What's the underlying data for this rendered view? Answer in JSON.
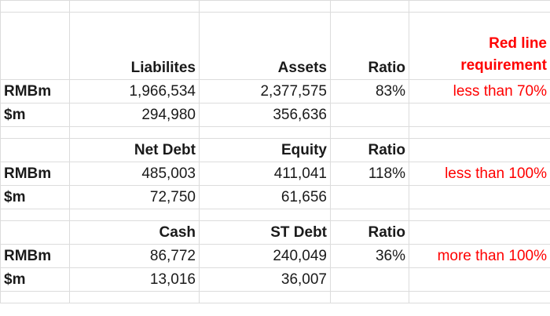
{
  "sections": [
    {
      "headers": {
        "col1": "Liabilites",
        "col2": "Assets",
        "ratio": "Ratio",
        "requirement_line1": "Red line",
        "requirement_line2": "requirement"
      },
      "rows": [
        {
          "label": "RMBm",
          "col1": "1,966,534",
          "col2": "2,377,575",
          "ratio": "83%",
          "requirement": "less than 70%"
        },
        {
          "label": "$m",
          "col1": "294,980",
          "col2": "356,636",
          "ratio": "",
          "requirement": ""
        }
      ]
    },
    {
      "headers": {
        "col1": "Net Debt",
        "col2": "Equity",
        "ratio": "Ratio"
      },
      "rows": [
        {
          "label": "RMBm",
          "col1": "485,003",
          "col2": "411,041",
          "ratio": "118%",
          "requirement": "less than 100%"
        },
        {
          "label": "$m",
          "col1": "72,750",
          "col2": "61,656",
          "ratio": "",
          "requirement": ""
        }
      ]
    },
    {
      "headers": {
        "col1": "Cash",
        "col2": "ST Debt",
        "ratio": "Ratio"
      },
      "rows": [
        {
          "label": "RMBm",
          "col1": "86,772",
          "col2": "240,049",
          "ratio": "36%",
          "requirement": "more than 100%"
        },
        {
          "label": "$m",
          "col1": "13,016",
          "col2": "36,007",
          "ratio": "",
          "requirement": ""
        }
      ]
    }
  ],
  "colors": {
    "text": "#1a1a1a",
    "requirement": "#ff0000",
    "gridline": "#dcdcdc"
  }
}
